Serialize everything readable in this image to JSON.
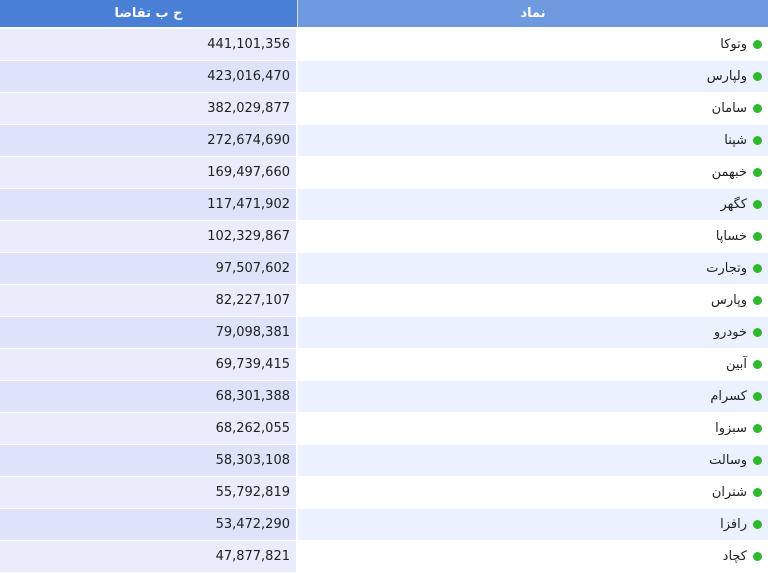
{
  "table": {
    "headers": {
      "value": "ح ب تقاضا",
      "symbol": "نماد"
    },
    "status_color": "#2eb82e",
    "rows": [
      {
        "symbol": "وتوکا",
        "value": "441,101,356"
      },
      {
        "symbol": "ولپارس",
        "value": "423,016,470"
      },
      {
        "symbol": "سامان",
        "value": "382,029,877"
      },
      {
        "symbol": "شپنا",
        "value": "272,674,690"
      },
      {
        "symbol": "خبهمن",
        "value": "169,497,660"
      },
      {
        "symbol": "کگهر",
        "value": "117,471,902"
      },
      {
        "symbol": "خساپا",
        "value": "102,329,867"
      },
      {
        "symbol": "وتجارت",
        "value": "97,507,602"
      },
      {
        "symbol": "وپارس",
        "value": "82,227,107"
      },
      {
        "symbol": "خودرو",
        "value": "79,098,381"
      },
      {
        "symbol": "آبین",
        "value": "69,739,415"
      },
      {
        "symbol": "کسرام",
        "value": "68,301,388"
      },
      {
        "symbol": "سبزوا",
        "value": "68,262,055"
      },
      {
        "symbol": "وسالت",
        "value": "58,303,108"
      },
      {
        "symbol": "شتران",
        "value": "55,792,819"
      },
      {
        "symbol": "رافزا",
        "value": "53,472,290"
      },
      {
        "symbol": "کچاد",
        "value": "47,877,821"
      }
    ]
  }
}
